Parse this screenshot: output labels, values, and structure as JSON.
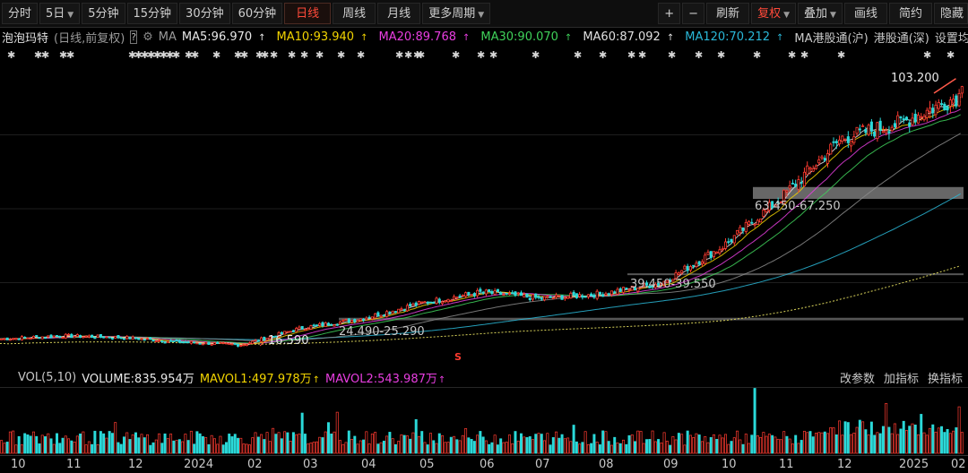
{
  "toolbar": {
    "periods": [
      "分时",
      "5日",
      "5分钟",
      "15分钟",
      "30分钟",
      "60分钟",
      "日线",
      "周线",
      "月线",
      "更多周期"
    ],
    "active_period": "日线",
    "right": {
      "zoom_in": "+",
      "zoom_out": "−",
      "refresh": "刷新",
      "adjust": "复权",
      "overlay": "叠加",
      "draw": "画线",
      "simple": "简约",
      "hide": "隐藏"
    }
  },
  "legend": {
    "stock_name": "泡泡玛特",
    "mode": "(日线,前复权)",
    "help": "?",
    "ma_label": "MA",
    "ma5": "MA5:96.970",
    "ma10": "MA10:93.940",
    "ma20": "MA20:89.768",
    "ma30": "MA30:90.070",
    "ma60": "MA60:87.092",
    "ma120": "MA120:70.212",
    "hk_sh": "MA港股通(沪)",
    "hk_sz": "港股通(深)",
    "settings": "设置均线",
    "colors": {
      "ma5": "#e8e8e8",
      "ma10": "#f2d400",
      "ma20": "#e83ee0",
      "ma30": "#3fd15a",
      "ma60": "#e0e0e0",
      "ma120": "#2ab8d8"
    }
  },
  "annotations": {
    "high": "103.200",
    "zone_top": "63.450-67.250",
    "zone_mid": "39.450-39.550",
    "zone_low": "24.490-25.290",
    "low": "16.590",
    "event_marker": "S"
  },
  "volume": {
    "label": "VOL(5,10)",
    "volume": "VOLUME:835.954万",
    "mavol1": "MAVOL1:497.978万",
    "mavol2": "MAVOL2:543.987万",
    "actions": [
      "改参数",
      "加指标",
      "换指标"
    ]
  },
  "time_axis": [
    "10",
    "11",
    "12",
    "2024",
    "02",
    "03",
    "04",
    "05",
    "06",
    "07",
    "08",
    "09",
    "10",
    "11",
    "12",
    "2025",
    "02"
  ],
  "chart_data": {
    "type": "candlestick",
    "note": "Daily K-line, forward-adjusted; approximate closing-price trend",
    "price_ylim": [
      14,
      106
    ],
    "months": [
      "10",
      "11",
      "12",
      "2024",
      "02",
      "03",
      "04",
      "05",
      "06",
      "07",
      "08",
      "09",
      "10",
      "11",
      "12",
      "2025",
      "02"
    ],
    "close_trend": [
      18.5,
      19.5,
      19.0,
      17.5,
      16.6,
      22.0,
      25.0,
      30.0,
      33.5,
      31.5,
      33.0,
      36.5,
      48.0,
      64.0,
      83.0,
      88.0,
      97.0
    ],
    "high": 103.2,
    "low": 16.59,
    "zones": [
      [
        63.45,
        67.25
      ],
      [
        39.45,
        39.55
      ],
      [
        24.49,
        25.29
      ]
    ]
  }
}
